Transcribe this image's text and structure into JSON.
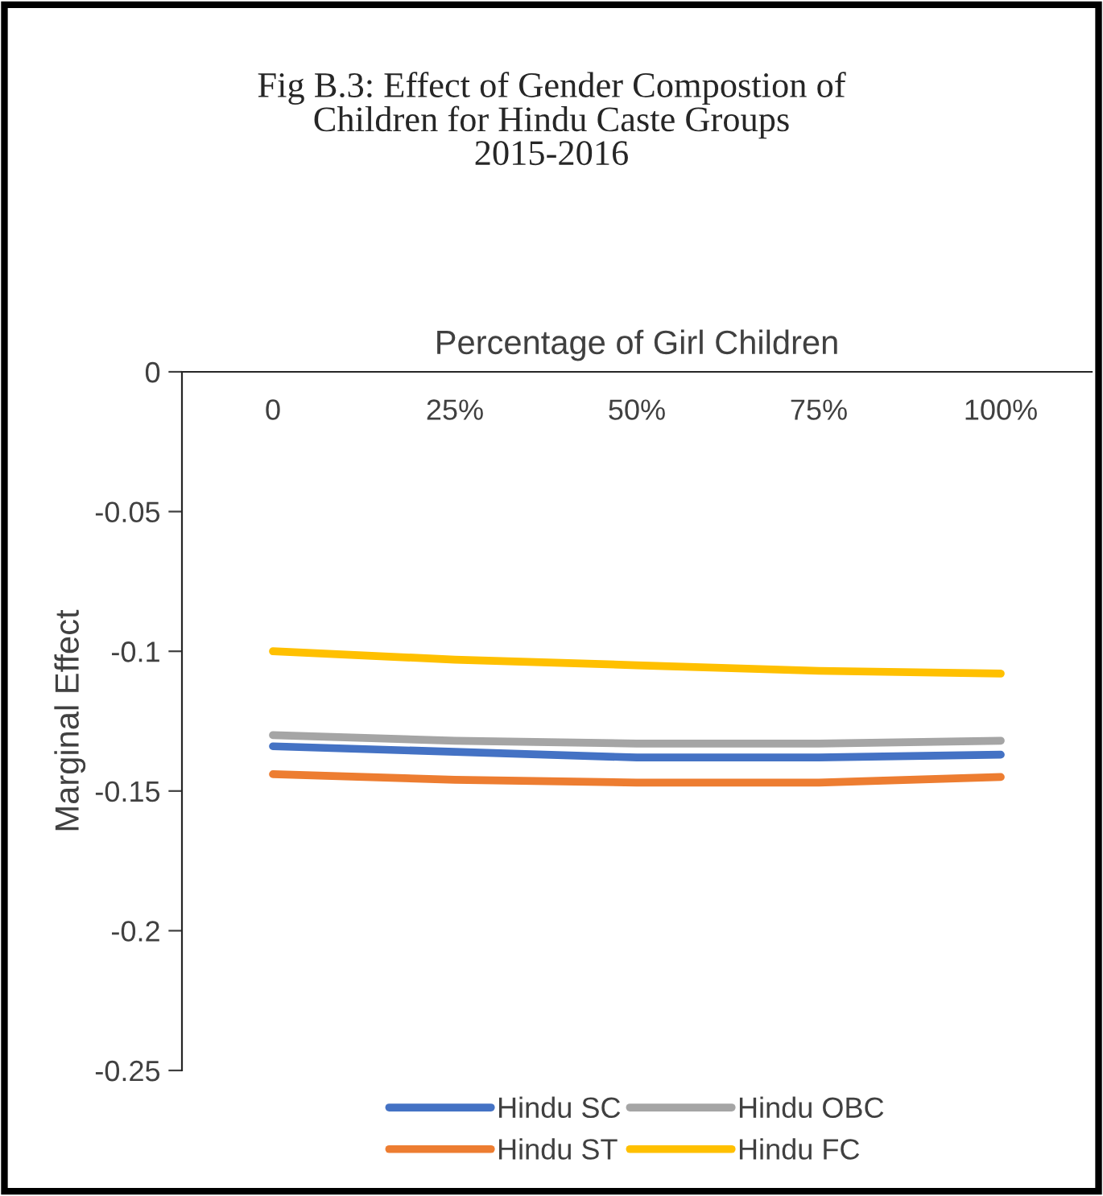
{
  "chart_data": {
    "type": "line",
    "title": "Fig B.3: Effect of Gender Compostion of\nChildren for Hindu Caste Groups\n2015-2016",
    "xlabel": "Percentage of Girl Children",
    "ylabel": "Marginal Effect",
    "categories": [
      "0",
      "25%",
      "50%",
      "75%",
      "100%"
    ],
    "series": [
      {
        "name": "Hindu SC",
        "color": "#4472c4",
        "values": [
          -0.134,
          -0.136,
          -0.138,
          -0.138,
          -0.137
        ]
      },
      {
        "name": "Hindu ST",
        "color": "#ed7d31",
        "values": [
          -0.144,
          -0.146,
          -0.147,
          -0.147,
          -0.145
        ]
      },
      {
        "name": "Hindu OBC",
        "color": "#a5a5a5",
        "values": [
          -0.13,
          -0.132,
          -0.133,
          -0.133,
          -0.132
        ]
      },
      {
        "name": "Hindu FC",
        "color": "#ffc000",
        "values": [
          -0.1,
          -0.103,
          -0.105,
          -0.107,
          -0.108
        ]
      }
    ],
    "ylim": [
      -0.25,
      0
    ],
    "yticks": [
      -0.25,
      -0.2,
      -0.15,
      -0.1,
      -0.05,
      0
    ],
    "grid": false,
    "legend": "bottom",
    "marker": "none",
    "line_style": "solid"
  }
}
